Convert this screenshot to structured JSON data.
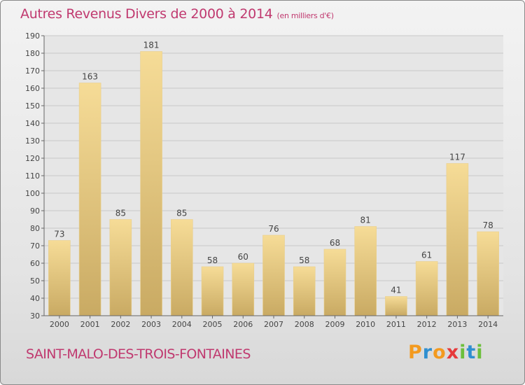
{
  "title": "Autres Revenus Divers de 2000 à 2014",
  "unit_note": "(en milliers d'€)",
  "town": "SAINT-MALO-DES-TROIS-FONTAINES",
  "logo": {
    "letters": [
      "P",
      "r",
      "o",
      "x",
      "i",
      "t",
      "i"
    ],
    "colors": [
      "#f39a1f",
      "#2f8fd0",
      "#f39a1f",
      "#e6393b",
      "#6cbf3b",
      "#2f8fd0",
      "#6cbf3b"
    ]
  },
  "colors": {
    "title": "#c0396f",
    "bar_light": "#f6dc97",
    "bar_dark": "#c9aa63",
    "grid": "#c8c8c8"
  },
  "chart_data": {
    "type": "bar",
    "categories": [
      "2000",
      "2001",
      "2002",
      "2003",
      "2004",
      "2005",
      "2006",
      "2007",
      "2008",
      "2009",
      "2010",
      "2011",
      "2012",
      "2013",
      "2014"
    ],
    "values": [
      73,
      163,
      85,
      181,
      85,
      58,
      60,
      76,
      58,
      68,
      81,
      41,
      61,
      117,
      78
    ],
    "ylim": [
      30,
      190
    ],
    "yticks": [
      30,
      40,
      50,
      60,
      70,
      80,
      90,
      100,
      110,
      120,
      130,
      140,
      150,
      160,
      170,
      180,
      190
    ],
    "grid": true,
    "data_labels": true
  }
}
